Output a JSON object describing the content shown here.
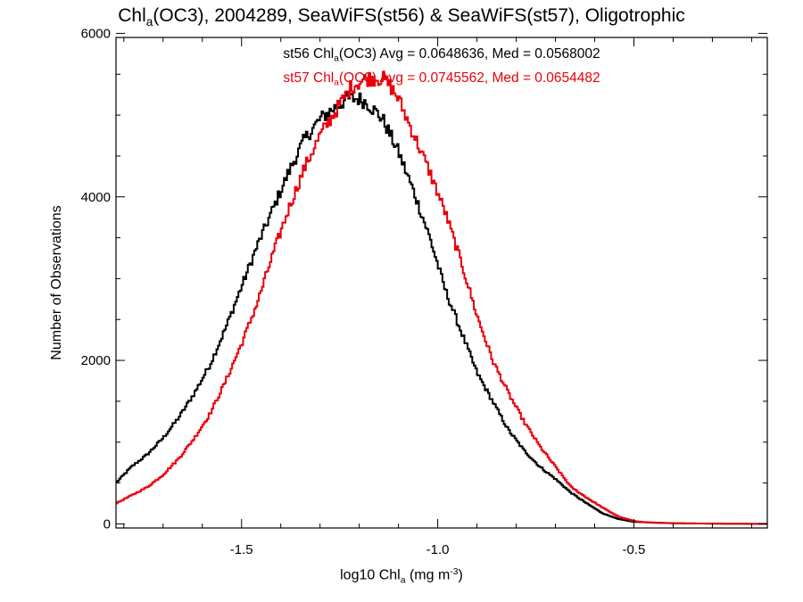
{
  "title": {
    "pre": "Chl",
    "sub": "a",
    "post": "(OC3), 2004289, SeaWiFS(st56) & SeaWiFS(st57), Oligotrophic"
  },
  "stats": [
    {
      "pre": "st56 Chl",
      "sub": "a",
      "post": "(OC3) Avg = 0.0648636, Med = 0.0568002",
      "color": "#000000"
    },
    {
      "pre": "st57 Chl",
      "sub": "a",
      "post": "(OC3) Avg = 0.0745562, Med = 0.0654482",
      "color": "#e8000b"
    }
  ],
  "xlabel": {
    "pre": "log10 Chl",
    "sub": "a",
    "mid": " (mg m",
    "sup": "-3",
    "post": ")"
  },
  "ylabel": "Number of Observations",
  "chart_data": {
    "type": "line",
    "step": true,
    "xlim": [
      -1.82,
      -0.16
    ],
    "ylim": [
      -50,
      5950
    ],
    "xticks": [
      {
        "value": -1.5,
        "label": "-1.5"
      },
      {
        "value": -1.0,
        "label": "-1.0"
      },
      {
        "value": -0.5,
        "label": "-0.5"
      }
    ],
    "yticks": [
      {
        "value": 0,
        "label": "0"
      },
      {
        "value": 2000,
        "label": "2000"
      },
      {
        "value": 4000,
        "label": "4000"
      },
      {
        "value": 6000,
        "label": "6000"
      }
    ],
    "grid": false,
    "series": [
      {
        "name": "st56",
        "color": "#000000",
        "x": [
          -1.82,
          -1.78,
          -1.74,
          -1.7,
          -1.66,
          -1.62,
          -1.58,
          -1.54,
          -1.5,
          -1.46,
          -1.42,
          -1.38,
          -1.34,
          -1.3,
          -1.26,
          -1.23,
          -1.2,
          -1.18,
          -1.14,
          -1.1,
          -1.06,
          -1.02,
          -0.98,
          -0.94,
          -0.9,
          -0.86,
          -0.82,
          -0.78,
          -0.74,
          -0.7,
          -0.66,
          -0.62,
          -0.58,
          -0.54,
          -0.5,
          -0.4,
          -0.3,
          -0.16
        ],
        "y": [
          500,
          700,
          850,
          1050,
          1300,
          1600,
          1950,
          2400,
          2900,
          3400,
          3850,
          4300,
          4700,
          4950,
          5100,
          5200,
          5200,
          5150,
          4950,
          4550,
          4050,
          3500,
          2850,
          2350,
          1850,
          1500,
          1150,
          900,
          700,
          550,
          380,
          250,
          130,
          60,
          25,
          8,
          3,
          0
        ]
      },
      {
        "name": "st57",
        "color": "#e8000b",
        "x": [
          -1.82,
          -1.78,
          -1.74,
          -1.7,
          -1.66,
          -1.62,
          -1.58,
          -1.54,
          -1.5,
          -1.46,
          -1.42,
          -1.38,
          -1.34,
          -1.3,
          -1.26,
          -1.22,
          -1.18,
          -1.14,
          -1.12,
          -1.1,
          -1.06,
          -1.02,
          -0.98,
          -0.94,
          -0.9,
          -0.86,
          -0.82,
          -0.78,
          -0.74,
          -0.7,
          -0.66,
          -0.62,
          -0.58,
          -0.54,
          -0.5,
          -0.46,
          -0.4,
          -0.3,
          -0.16
        ],
        "y": [
          250,
          350,
          450,
          600,
          800,
          1050,
          1350,
          1750,
          2200,
          2700,
          3300,
          3850,
          4350,
          4750,
          5050,
          5350,
          5450,
          5450,
          5350,
          5200,
          4750,
          4300,
          3800,
          3200,
          2550,
          2000,
          1600,
          1250,
          950,
          700,
          450,
          320,
          200,
          90,
          35,
          15,
          8,
          3,
          0
        ]
      }
    ]
  }
}
